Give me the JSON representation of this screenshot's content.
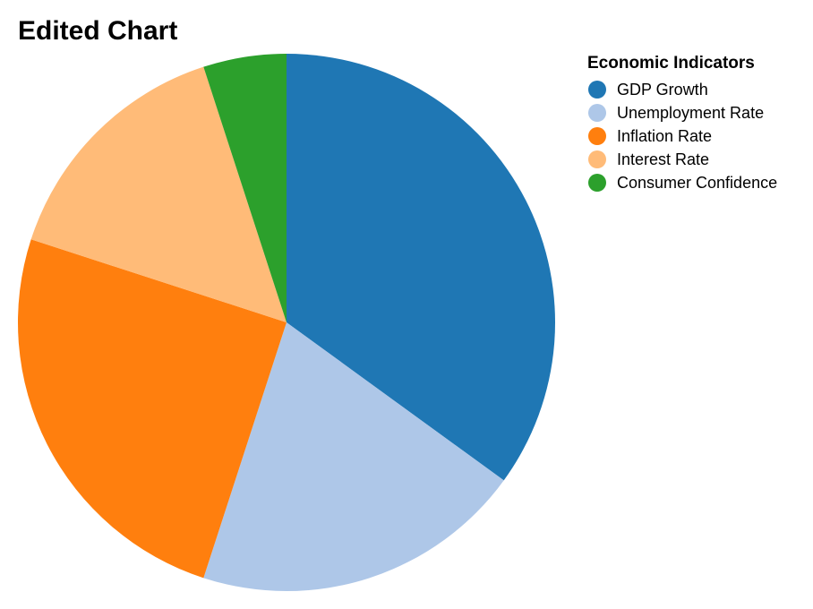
{
  "chart_data": {
    "type": "pie",
    "title": "Edited Chart",
    "legend_title": "Economic Indicators",
    "legend_position": "right",
    "categories": [
      "GDP Growth",
      "Unemployment Rate",
      "Inflation Rate",
      "Interest Rate",
      "Consumer Confidence"
    ],
    "values": [
      35,
      20,
      25,
      15,
      5
    ],
    "colors": [
      "#1f77b4",
      "#aec7e8",
      "#ff7f0e",
      "#ffbb78",
      "#2ca02c"
    ]
  }
}
